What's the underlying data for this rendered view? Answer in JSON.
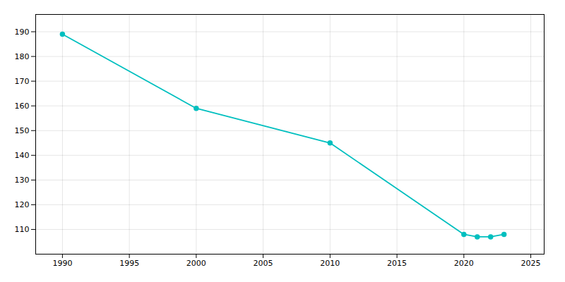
{
  "chart_data": {
    "type": "line",
    "x": [
      1990,
      2000,
      2010,
      2020,
      2021,
      2022,
      2023
    ],
    "values": [
      189,
      159,
      145,
      108,
      107,
      107,
      108
    ],
    "color": "#00BFBF",
    "marker": "circle",
    "xlim": [
      1988,
      2026
    ],
    "ylim": [
      100,
      197
    ],
    "xticks": [
      1990,
      1995,
      2000,
      2005,
      2010,
      2015,
      2020,
      2025
    ],
    "yticks": [
      110,
      120,
      130,
      140,
      150,
      160,
      170,
      180,
      190
    ],
    "grid": true
  }
}
